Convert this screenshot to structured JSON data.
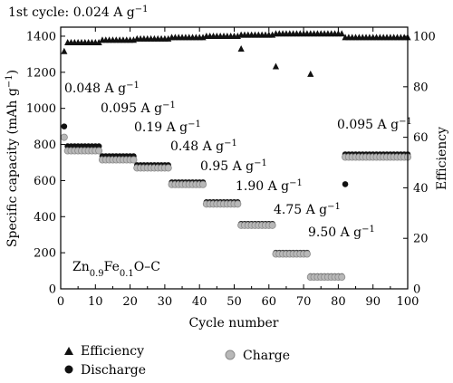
{
  "chart_data": {
    "type": "scatter",
    "title": "",
    "xlabel": "Cycle number",
    "ylabel_left_prefix": "Specific capacity (mAh g",
    "ylabel_left_sup": "−1",
    "ylabel_left_suffix": ")",
    "ylabel_right": "Efficiency",
    "xlim": [
      0,
      100
    ],
    "ylim_left": [
      0,
      1450
    ],
    "ylim_right": [
      0,
      103.6
    ],
    "xticks": [
      0,
      10,
      20,
      30,
      40,
      50,
      60,
      70,
      80,
      90,
      100
    ],
    "yticks_left": [
      0,
      200,
      400,
      600,
      800,
      1000,
      1200,
      1400
    ],
    "yticks_right": [
      0,
      20,
      40,
      60,
      80,
      100
    ],
    "material": {
      "base": "Zn",
      "sub1": "0.9",
      "mid": "Fe",
      "sub2": "0.1",
      "tail": "O–C"
    },
    "rate_labels": [
      {
        "value": "1st cycle: 0.024 A g",
        "sup": "−1"
      },
      {
        "value": "0.048 A g",
        "sup": "−1"
      },
      {
        "value": "0.095 A g",
        "sup": "−1"
      },
      {
        "value": "0.19 A g",
        "sup": "−1"
      },
      {
        "value": "0.48 A g",
        "sup": "−1"
      },
      {
        "value": "0.95 A g",
        "sup": "−1"
      },
      {
        "value": "1.90 A g",
        "sup": "−1"
      },
      {
        "value": "4.75 A g",
        "sup": "−1"
      },
      {
        "value": "9.50 A g",
        "sup": "−1"
      },
      {
        "value": "0.095 A g",
        "sup": "−1"
      }
    ],
    "legend": {
      "efficiency": "Efficiency",
      "discharge": "Discharge",
      "charge": "Charge",
      "placement": "bottom"
    },
    "segments": [
      {
        "x": [
          2,
          11
        ],
        "discharge": 790,
        "charge": 765,
        "efficiency": 97.5
      },
      {
        "x": [
          12,
          21
        ],
        "discharge": 735,
        "charge": 715,
        "efficiency": 98.5
      },
      {
        "x": [
          22,
          31
        ],
        "discharge": 685,
        "charge": 670,
        "efficiency": 99.0
      },
      {
        "x": [
          32,
          41
        ],
        "discharge": 590,
        "charge": 578,
        "efficiency": 99.5
      },
      {
        "x": [
          42,
          51
        ],
        "discharge": 480,
        "charge": 470,
        "efficiency": 100
      },
      {
        "x": [
          52,
          61
        ],
        "discharge": 360,
        "charge": 352,
        "efficiency": 100.5
      },
      {
        "x": [
          62,
          71
        ],
        "discharge": 200,
        "charge": 193,
        "efficiency": 101
      },
      {
        "x": [
          72,
          81
        ],
        "discharge": 70,
        "charge": 65,
        "efficiency": 101
      },
      {
        "x": [
          82,
          100
        ],
        "discharge": 745,
        "charge": 730,
        "efficiency": 99.5
      }
    ],
    "special_points": {
      "discharge": [
        {
          "x": 1,
          "y": 900
        },
        {
          "x": 82,
          "y": 580
        }
      ],
      "charge": [
        {
          "x": 1,
          "y": 840
        }
      ],
      "efficiency": [
        {
          "x": 1,
          "y": 94
        },
        {
          "x": 52,
          "y": 95
        },
        {
          "x": 62,
          "y": 88
        },
        {
          "x": 72,
          "y": 85
        }
      ]
    }
  }
}
